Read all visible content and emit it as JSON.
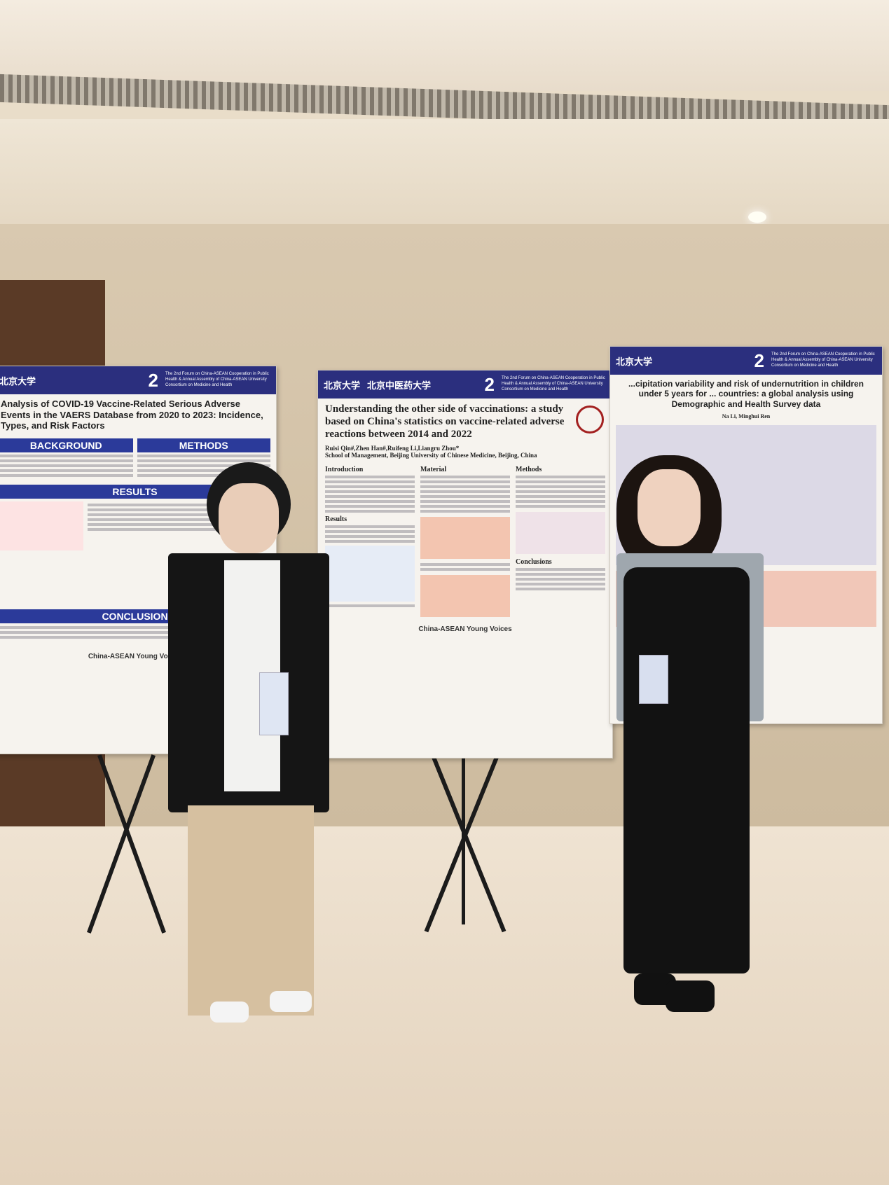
{
  "scene": "poster session",
  "header_banner": {
    "forum": "The 2nd Forum on China-ASEAN Cooperation in Public Health & Annual Assembly of China-ASEAN University Consortium on Medicine and Health",
    "logo_pku": "北京大学",
    "logo_bucm": "北京中医药大学",
    "edition": "2"
  },
  "left_poster": {
    "title": "Analysis of COVID-19 Vaccine-Related Serious Adverse Events in the VAERS Database from 2020 to 2023: Incidence, Types, and Risk Factors",
    "sections": [
      "BACKGROUND",
      "METHODS",
      "RESULTS",
      "CONCLUSION"
    ],
    "footer": "China-ASEAN Young Voices"
  },
  "center_poster": {
    "title": "Understanding the other side of vaccinations: a study based on China's statistics on vaccine-related adverse reactions between 2014 and 2022",
    "authors": "Ruisi Qin#,Zhen Han#,Ruifeng Li,Liangru Zhou*",
    "affiliation": "School of Management, Beijing University of Chinese Medicine, Beijing, China",
    "sections": [
      "Introduction",
      "Material",
      "Methods",
      "Results",
      "Conclusions"
    ],
    "footer": "China-ASEAN Young Voices"
  },
  "right_poster": {
    "title": "...cipitation variability and risk of undernutrition in children under 5 years for ... countries: a global analysis using Demographic and Health Survey data",
    "authors": "Na Li, Minghui Ren"
  },
  "colors": {
    "poster_header": "#2b2f7e",
    "wall": "#d9c9b0",
    "floor": "#efe3d2"
  }
}
